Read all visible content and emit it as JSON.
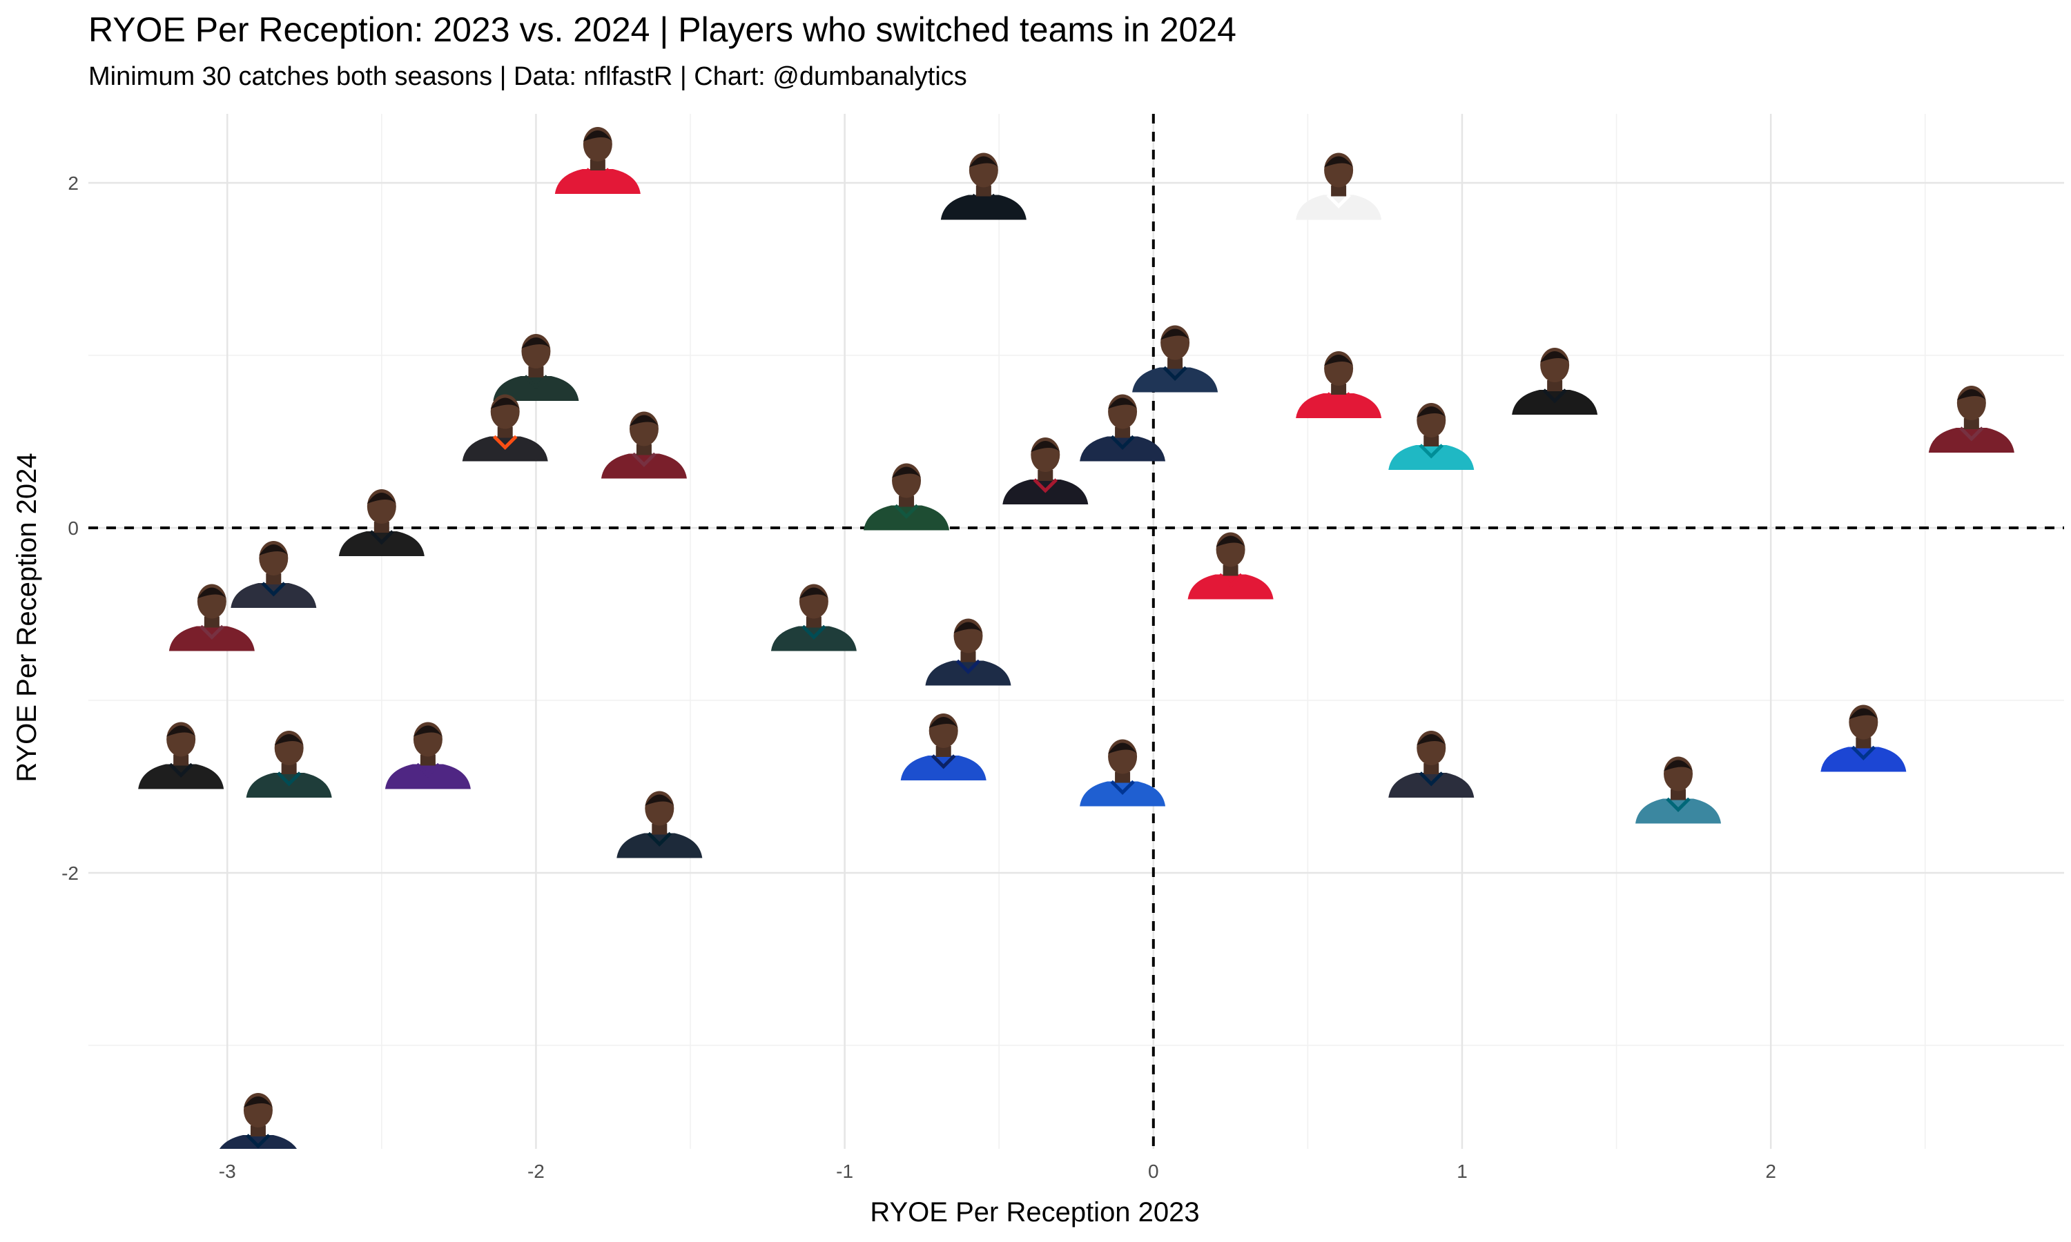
{
  "chart_data": {
    "type": "scatter",
    "title": "RYOE Per Reception: 2023 vs. 2024 | Players who switched teams in 2024",
    "subtitle": "Minimum 30 catches both seasons | Data: nflfastR | Chart: @dumbanalytics",
    "xlabel": "RYOE Per Reception 2023",
    "ylabel": "RYOE Per Reception 2024",
    "xlim": [
      -3.45,
      2.95
    ],
    "ylim": [
      -3.6,
      2.4
    ],
    "x_ticks": [
      -3,
      -2,
      -1,
      0,
      1,
      2
    ],
    "y_ticks": [
      -2,
      0,
      2
    ],
    "x_tick_labels": [
      "-3",
      "-2",
      "-1",
      "0",
      "1",
      "2"
    ],
    "y_tick_labels": [
      "-2",
      "0",
      "2"
    ],
    "grid": true,
    "reference_lines": {
      "x": 0,
      "y": 0,
      "style": "dashed"
    },
    "marker": "player headshot",
    "points": [
      {
        "x": -1.8,
        "y": 2.0,
        "team_color": "#e31837",
        "jersey": "#e31837"
      },
      {
        "x": -0.55,
        "y": 1.85,
        "team_color": "#101820",
        "jersey": "#101820"
      },
      {
        "x": 0.6,
        "y": 1.85,
        "team_color": "#ffffff",
        "jersey": "#f2f2f2"
      },
      {
        "x": -2.0,
        "y": 0.8,
        "team_color": "#203731",
        "jersey": "#203731"
      },
      {
        "x": 0.07,
        "y": 0.85,
        "team_color": "#002244",
        "jersey": "#1f3556"
      },
      {
        "x": 0.6,
        "y": 0.7,
        "team_color": "#e31837",
        "jersey": "#e31837"
      },
      {
        "x": 1.3,
        "y": 0.72,
        "team_color": "#101820",
        "jersey": "#1a1a1a"
      },
      {
        "x": 2.65,
        "y": 0.5,
        "team_color": "#773141",
        "jersey": "#7a1f2b"
      },
      {
        "x": -2.1,
        "y": 0.45,
        "team_color": "#fb4f14",
        "jersey": "#26262b"
      },
      {
        "x": -1.65,
        "y": 0.35,
        "team_color": "#773141",
        "jersey": "#7a1f2b"
      },
      {
        "x": -0.1,
        "y": 0.45,
        "team_color": "#002244",
        "jersey": "#1b2a4a"
      },
      {
        "x": 0.9,
        "y": 0.4,
        "team_color": "#008e97",
        "jersey": "#1fb8c4"
      },
      {
        "x": -0.35,
        "y": 0.2,
        "team_color": "#a71930",
        "jersey": "#1a1a24"
      },
      {
        "x": -0.8,
        "y": 0.05,
        "team_color": "#125740",
        "jersey": "#1e4d33"
      },
      {
        "x": -2.5,
        "y": -0.1,
        "team_color": "#101820",
        "jersey": "#1e1e1e"
      },
      {
        "x": -2.85,
        "y": -0.4,
        "team_color": "#002244",
        "jersey": "#2c2f3e"
      },
      {
        "x": 0.25,
        "y": -0.35,
        "team_color": "#e31837",
        "jersey": "#e31837"
      },
      {
        "x": -3.05,
        "y": -0.65,
        "team_color": "#773141",
        "jersey": "#7a1f2b"
      },
      {
        "x": -1.1,
        "y": -0.65,
        "team_color": "#004c54",
        "jersey": "#1f3d3a"
      },
      {
        "x": -0.6,
        "y": -0.85,
        "team_color": "#0b2265",
        "jersey": "#1d2c47"
      },
      {
        "x": -3.15,
        "y": -1.45,
        "team_color": "#101820",
        "jersey": "#1e1e1e"
      },
      {
        "x": -2.8,
        "y": -1.5,
        "team_color": "#004c54",
        "jersey": "#1f3d3a"
      },
      {
        "x": -2.35,
        "y": -1.45,
        "team_color": "#4f2683",
        "jersey": "#4f2683"
      },
      {
        "x": -0.68,
        "y": -1.4,
        "team_color": "#0b2265",
        "jersey": "#1c4fcf"
      },
      {
        "x": -0.1,
        "y": -1.55,
        "team_color": "#003594",
        "jersey": "#1f5fd1"
      },
      {
        "x": 0.9,
        "y": -1.5,
        "team_color": "#002244",
        "jersey": "#2b2e3d"
      },
      {
        "x": 1.7,
        "y": -1.65,
        "team_color": "#006778",
        "jersey": "#3b87a0"
      },
      {
        "x": 2.3,
        "y": -1.35,
        "team_color": "#00338d",
        "jersey": "#1c46d4"
      },
      {
        "x": -1.6,
        "y": -1.85,
        "team_color": "#03202f",
        "jersey": "#1d2a3a"
      },
      {
        "x": -2.9,
        "y": -3.6,
        "team_color": "#002244",
        "jersey": "#1b2a4a"
      }
    ]
  }
}
